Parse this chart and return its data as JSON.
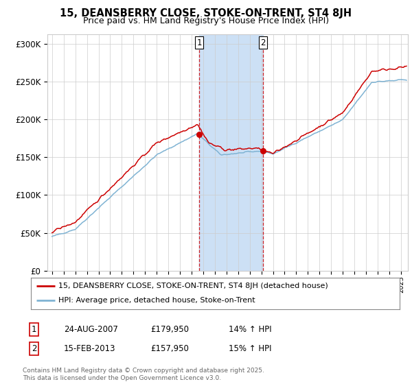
{
  "title": "15, DEANSBERRY CLOSE, STOKE-ON-TRENT, ST4 8JH",
  "subtitle": "Price paid vs. HM Land Registry's House Price Index (HPI)",
  "ytick_labels": [
    "£0",
    "£50K",
    "£100K",
    "£150K",
    "£200K",
    "£250K",
    "£300K"
  ],
  "yticks": [
    0,
    50000,
    100000,
    150000,
    200000,
    250000,
    300000
  ],
  "ylim": [
    0,
    312000
  ],
  "xlim_min": 1994.6,
  "xlim_max": 2025.6,
  "legend_line1": "15, DEANSBERRY CLOSE, STOKE-ON-TRENT, ST4 8JH (detached house)",
  "legend_line2": "HPI: Average price, detached house, Stoke-on-Trent",
  "annotation1_label": "1",
  "annotation1_date": "24-AUG-2007",
  "annotation1_price": "£179,950",
  "annotation1_hpi": "14% ↑ HPI",
  "annotation2_label": "2",
  "annotation2_date": "15-FEB-2013",
  "annotation2_price": "£157,950",
  "annotation2_hpi": "15% ↑ HPI",
  "footnote": "Contains HM Land Registry data © Crown copyright and database right 2025.\nThis data is licensed under the Open Government Licence v3.0.",
  "sale1_year": 2007.65,
  "sale1_price": 179950,
  "sale2_year": 2013.12,
  "sale2_price": 157950,
  "shade_color": "#cce0f5",
  "dashed_color": "#cc0000",
  "line_red": "#cc0000",
  "line_blue": "#7fb3d3",
  "bg_color": "#ffffff",
  "grid_color": "#cccccc"
}
